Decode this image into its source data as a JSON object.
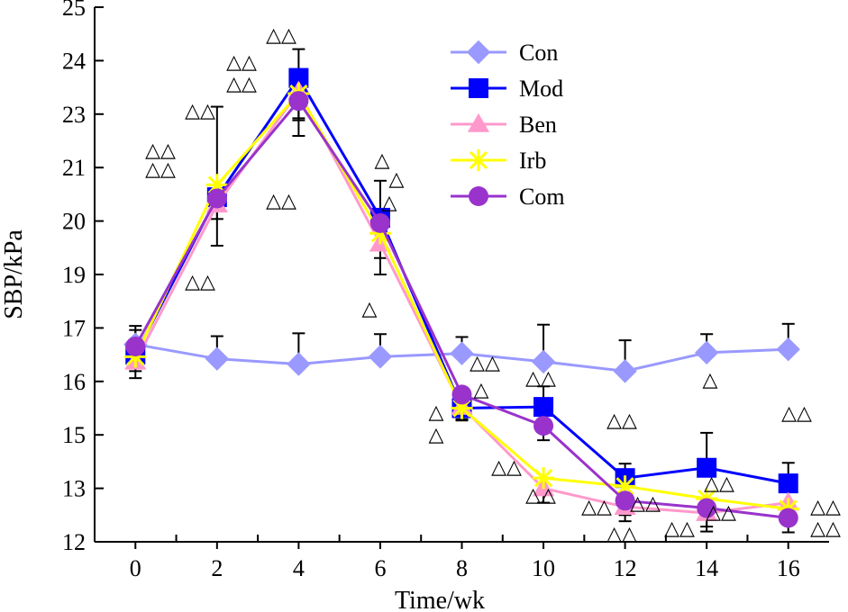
{
  "chart_data": {
    "type": "line",
    "title": "",
    "xlabel": "Time/wk",
    "ylabel": "SBP/kPa",
    "x": [
      0,
      2,
      4,
      6,
      8,
      10,
      12,
      14,
      16
    ],
    "xlim": [
      -1,
      17
    ],
    "ylim": [
      12,
      25
    ],
    "xtick_labels": [
      "0",
      "2",
      "4",
      "6",
      "8",
      "10",
      "12",
      "14",
      "16"
    ],
    "ytick_labels": [
      "12",
      "13",
      "15",
      "16",
      "17",
      "19",
      "20",
      "21",
      "23",
      "24",
      "25"
    ],
    "legend_position": "top-right",
    "series": [
      {
        "name": "Con",
        "color": "#9999ff",
        "marker": "diamond",
        "values": [
          16.8,
          16.45,
          16.32,
          16.5,
          16.58,
          16.38,
          16.15,
          16.6,
          16.68
        ],
        "err_plus": [
          0.45,
          0.55,
          0.75,
          0.55,
          0.4,
          0.9,
          0.75,
          0.45,
          0.62
        ]
      },
      {
        "name": "Mod",
        "color": "#0000ff",
        "marker": "square",
        "values": [
          16.55,
          20.38,
          23.28,
          19.88,
          15.25,
          15.28,
          13.55,
          13.8,
          13.42
        ],
        "err_plus": [
          0.6,
          2.2,
          0.7,
          0.9,
          0.45,
          0.5,
          0.35,
          0.85,
          0.5
        ]
      },
      {
        "name": "Ben",
        "color": "#ff99cc",
        "marker": "triangle",
        "values": [
          16.38,
          20.2,
          22.95,
          19.25,
          15.28,
          13.3,
          12.85,
          12.7,
          12.95
        ],
        "err_minus": [
          0.4,
          1.0,
          0.7,
          0.75,
          0.3,
          0.35,
          0.35,
          0.45,
          0.45
        ]
      },
      {
        "name": "Irb",
        "color": "#ffff00",
        "marker": "star",
        "values": [
          16.5,
          20.68,
          22.9,
          19.5,
          15.25,
          13.55,
          13.35,
          13.05,
          12.8
        ],
        "err_minus": [
          0.35,
          0.5,
          0.6,
          0.6,
          0.3,
          0.3,
          0.35,
          0.35,
          0.35
        ]
      },
      {
        "name": "Com",
        "color": "#9933cc",
        "marker": "circle",
        "values": [
          16.75,
          20.35,
          22.72,
          19.75,
          15.58,
          14.82,
          13.0,
          12.82,
          12.58
        ],
        "err_minus": [
          0.45,
          0.5,
          0.85,
          0.6,
          0.35,
          0.35,
          0.35,
          0.45,
          0.35
        ]
      }
    ],
    "annotation_symbol": "△△"
  }
}
